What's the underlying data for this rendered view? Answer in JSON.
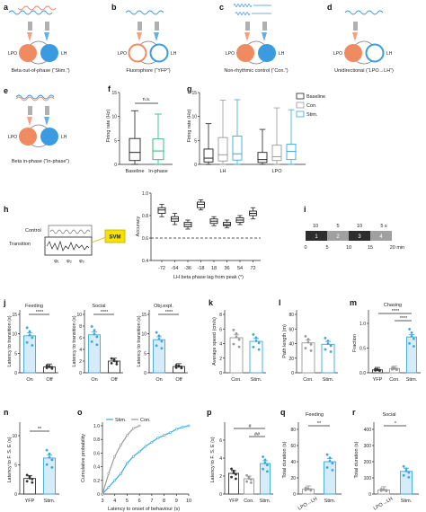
{
  "colors": {
    "lpo": "#f08a60",
    "lh": "#3b9be0",
    "stim": "#3ba7e0",
    "con": "#9a9a9a",
    "yfp": "#555555",
    "inphase": "#22b87a"
  },
  "panels": {
    "a": {
      "letter": "a",
      "caption": "Beta out-of-phase (“Stim.”)",
      "lpo": "LPO",
      "lh": "LH"
    },
    "b": {
      "letter": "b",
      "caption": "Fluorophore (“YFP”)",
      "lpo": "LPO",
      "lh": "LH"
    },
    "c": {
      "letter": "c",
      "caption": "Non-rhythmic control (“Con.”)",
      "lpo": "LPO",
      "lh": "LH"
    },
    "d": {
      "letter": "d",
      "caption": "Unidirectional (“LPO→LH”)",
      "lpo": "LPO",
      "lh": "LH"
    },
    "e": {
      "letter": "e",
      "caption": "Beta in-phase (“In-phase”)",
      "lpo": "LPO",
      "lh": "LH"
    },
    "f": {
      "letter": "f",
      "ylabel": "Firing rate (Hz)",
      "ns": "n.s.",
      "ticks": [
        "0",
        "5",
        "10",
        "15"
      ],
      "xcats": [
        "Baseline",
        "In-phase"
      ]
    },
    "g": {
      "letter": "g",
      "ylabel": "Firing rate (Hz)",
      "ticks": [
        "0",
        "5",
        "10",
        "15"
      ],
      "groups": [
        "LH",
        "LPO"
      ],
      "legend": [
        "Baseline",
        "Con.",
        "Stim."
      ]
    },
    "h": {
      "letter": "h",
      "control": "Control",
      "transition": "Transition",
      "svm": "SVM",
      "phis": [
        "φ₁",
        "φ₂",
        "φ₃"
      ],
      "ylabel": "Accuracy",
      "yticks": [
        "0.4",
        "0.6",
        "0.8",
        "1.0"
      ],
      "xlabel": "LH beta phase lag from peak (°)"
    },
    "i": {
      "letter": "i",
      "top_labels": [
        "10",
        "5",
        "10",
        "5 s"
      ],
      "blocks": [
        "1",
        "2",
        "3",
        "4"
      ],
      "bottom_labels": [
        "0",
        "5",
        "10",
        "15",
        "20 min"
      ]
    },
    "j": {
      "letter": "j",
      "ylabel": "Latency to transition (s)",
      "sig": "****",
      "xcats": [
        "On",
        "Off"
      ],
      "sub": [
        {
          "title": "Feeding",
          "ticks": [
            "0",
            "5",
            "10",
            "15"
          ]
        },
        {
          "title": "Social",
          "ticks": [
            "0",
            "2",
            "4",
            "6",
            "8",
            "10"
          ]
        },
        {
          "title": "Obj.expl.",
          "ticks": [
            "0",
            "5",
            "10",
            "15"
          ]
        }
      ]
    },
    "k": {
      "letter": "k",
      "ylabel": "Average speed (cm/s)",
      "ticks": [
        "0",
        "2",
        "4",
        "6",
        "8"
      ],
      "xcats": [
        "Con.",
        "Stim."
      ]
    },
    "l": {
      "letter": "l",
      "ylabel": "Path length (m)",
      "ticks": [
        "0",
        "20",
        "40",
        "60",
        "80"
      ],
      "xcats": [
        "Con.",
        "Stim."
      ]
    },
    "m": {
      "letter": "m",
      "title": "Chasing",
      "ylabel": "Fraction",
      "ticks": [
        "0.0",
        "0.5",
        "1.0"
      ],
      "sig": [
        "****",
        "****"
      ],
      "xcats": [
        "YFP",
        "Con.",
        "Stim."
      ]
    },
    "n": {
      "letter": "n",
      "ylabel": "Latency to F. S. E (s)",
      "ticks": [
        "0",
        "5",
        "10"
      ],
      "sig": "**",
      "xcats": [
        "YFP",
        "Stim."
      ]
    },
    "o": {
      "letter": "o",
      "ylabel": "Cumulative probability",
      "yticks": [
        "0",
        "0.2",
        "0.4",
        "0.6",
        "0.8",
        "1.0"
      ],
      "xticks": [
        "3",
        "4",
        "5",
        "6",
        "7",
        "8",
        "9",
        "10"
      ],
      "xlabel": "Latency to onset of behaviour (s)",
      "legend": [
        "Stim.",
        "Con."
      ]
    },
    "p": {
      "letter": "p",
      "ylabel": "Latency to F. S. E (s)",
      "ticks": [
        "0",
        "2",
        "4",
        "6"
      ],
      "sig": [
        "#",
        "##"
      ],
      "xcats": [
        "YFP",
        "Con.",
        "Stim."
      ]
    },
    "q": {
      "letter": "q",
      "title": "Feeding",
      "ylabel": "Total duration (s)",
      "ticks": [
        "0",
        "20",
        "40",
        "60",
        "80"
      ],
      "sig": "**",
      "xcats": [
        "LPO→LH",
        "Stim."
      ]
    },
    "r": {
      "letter": "r",
      "title": "Social",
      "ylabel": "Total duration (s)",
      "ticks": [
        "0",
        "100",
        "200",
        "300",
        "400"
      ],
      "sig": "*",
      "xcats": [
        "LPO→LH",
        "Stim."
      ]
    }
  },
  "chart_data": [
    {
      "type": "box",
      "panel": "f",
      "categories": [
        "Baseline",
        "In-phase"
      ],
      "boxes": [
        [
          0,
          0.8,
          2.5,
          5.4,
          11.2
        ],
        [
          0,
          1,
          2.8,
          5.3,
          10.5
        ]
      ],
      "ylim": [
        0,
        15
      ]
    },
    {
      "type": "box",
      "panel": "g",
      "groups": [
        "LH",
        "LPO"
      ],
      "series": [
        {
          "name": "Baseline",
          "boxes": [
            [
              0,
              0.5,
              1.3,
              3.2,
              8.5
            ],
            [
              0,
              0.4,
              1,
              2.5,
              7.3
            ]
          ]
        },
        {
          "name": "Con.",
          "boxes": [
            [
              0,
              0.7,
              2,
              5.6,
              13.4
            ],
            [
              0,
              0.8,
              1.6,
              4,
              11.8
            ]
          ]
        },
        {
          "name": "Stim.",
          "boxes": [
            [
              0,
              0.9,
              2.2,
              5.9,
              13.5
            ],
            [
              0,
              1,
              2.7,
              4.2,
              11.4
            ]
          ]
        }
      ],
      "ylim": [
        0,
        15
      ]
    },
    {
      "type": "box",
      "panel": "h",
      "x": [
        "-72",
        "-54",
        "-36",
        "-18",
        "18",
        "36",
        "54",
        "72"
      ],
      "boxes": [
        [
          0.79,
          0.82,
          0.85,
          0.87,
          0.9
        ],
        [
          0.72,
          0.75,
          0.77,
          0.79,
          0.82
        ],
        [
          0.68,
          0.7,
          0.72,
          0.74,
          0.76
        ],
        [
          0.85,
          0.87,
          0.9,
          0.92,
          0.94
        ],
        [
          0.71,
          0.73,
          0.75,
          0.77,
          0.79
        ],
        [
          0.69,
          0.71,
          0.72,
          0.74,
          0.76
        ],
        [
          0.72,
          0.74,
          0.76,
          0.78,
          0.8
        ],
        [
          0.77,
          0.8,
          0.82,
          0.84,
          0.87
        ]
      ],
      "chance": 0.5,
      "ylim": [
        0.4,
        1.0
      ]
    },
    {
      "type": "bar",
      "panel": "j-feeding",
      "categories": [
        "On",
        "Off"
      ],
      "values": [
        9.5,
        1.5
      ],
      "ylim": [
        0,
        15
      ]
    },
    {
      "type": "bar",
      "panel": "j-social",
      "categories": [
        "On",
        "Off"
      ],
      "values": [
        6.5,
        2
      ],
      "ylim": [
        0,
        10
      ]
    },
    {
      "type": "bar",
      "panel": "j-objexpl",
      "categories": [
        "On",
        "Off"
      ],
      "values": [
        8.5,
        1.6
      ],
      "ylim": [
        0,
        15
      ]
    },
    {
      "type": "bar",
      "panel": "k",
      "categories": [
        "Con.",
        "Stim."
      ],
      "values": [
        4.8,
        4.3
      ],
      "ylim": [
        0,
        8
      ]
    },
    {
      "type": "bar",
      "panel": "l",
      "categories": [
        "Con.",
        "Stim."
      ],
      "values": [
        41,
        39
      ],
      "ylim": [
        0,
        80
      ]
    },
    {
      "type": "bar",
      "panel": "m",
      "categories": [
        "YFP",
        "Con.",
        "Stim."
      ],
      "values": [
        0.07,
        0.1,
        0.87
      ],
      "ylim": [
        0,
        1.2
      ]
    },
    {
      "type": "bar",
      "panel": "n",
      "categories": [
        "YFP",
        "Stim."
      ],
      "values": [
        3.2,
        7.4
      ],
      "ylim": [
        0,
        12
      ]
    },
    {
      "type": "line",
      "panel": "o",
      "series": [
        {
          "name": "Stim.",
          "x": [
            3,
            3.5,
            4,
            4.5,
            5,
            5.5,
            6,
            6.5,
            7,
            7.5,
            8,
            8.5,
            9,
            9.5,
            10
          ],
          "y": [
            0,
            0.1,
            0.2,
            0.3,
            0.45,
            0.55,
            0.62,
            0.7,
            0.76,
            0.82,
            0.86,
            0.9,
            0.95,
            0.98,
            1.0
          ]
        },
        {
          "name": "Con.",
          "x": [
            3,
            3.5,
            4,
            4.5,
            5,
            5.5,
            6
          ],
          "y": [
            0,
            0.3,
            0.55,
            0.72,
            0.86,
            0.96,
            1.0
          ]
        }
      ],
      "xlim": [
        3,
        10
      ],
      "ylim": [
        0,
        1
      ]
    },
    {
      "type": "bar",
      "panel": "p",
      "categories": [
        "YFP",
        "Con.",
        "Stim."
      ],
      "values": [
        2.3,
        1.7,
        3.4
      ],
      "ylim": [
        0,
        6
      ]
    },
    {
      "type": "bar",
      "panel": "q",
      "categories": [
        "LPO→LH",
        "Stim."
      ],
      "values": [
        6,
        40
      ],
      "ylim": [
        0,
        80
      ]
    },
    {
      "type": "bar",
      "panel": "r",
      "categories": [
        "LPO→LH",
        "Stim."
      ],
      "values": [
        25,
        140
      ],
      "ylim": [
        0,
        400
      ]
    }
  ]
}
